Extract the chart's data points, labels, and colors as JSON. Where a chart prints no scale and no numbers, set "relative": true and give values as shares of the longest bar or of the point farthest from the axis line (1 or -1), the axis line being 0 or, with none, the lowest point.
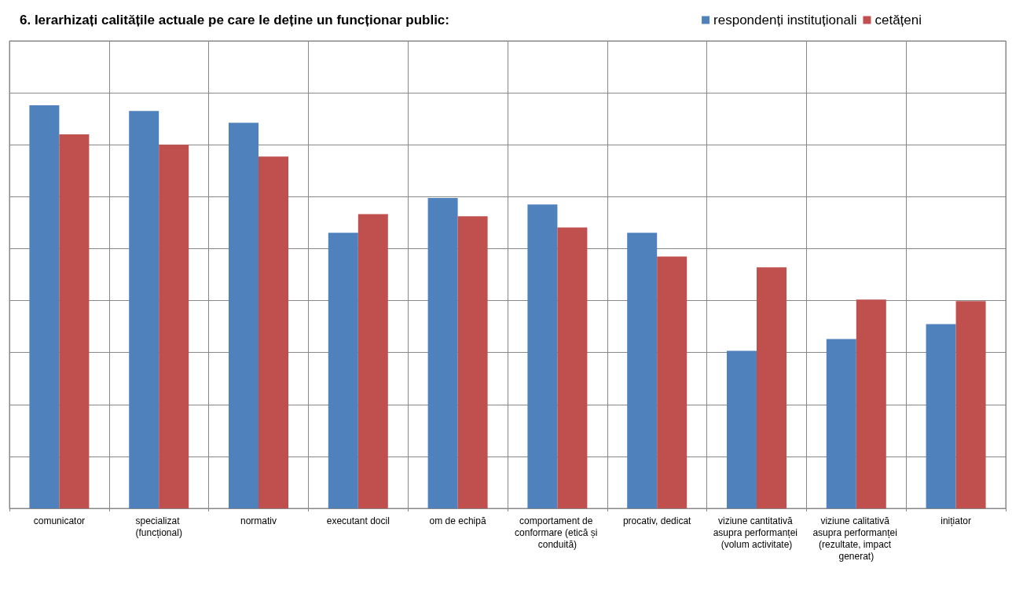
{
  "chart_data": {
    "type": "bar",
    "title": "6. Ierarhizați calitățile actuale pe care le deține un funcționar public:",
    "categories": [
      "comunicator",
      "specializat (funcțional)",
      "normativ",
      "executant docil",
      "om de echipă",
      "comportament de conformare (etică și conduită)",
      "procativ, dedicat",
      "viziune cantitativă asupra performanței (volum activitate)",
      "viziune calitativă asupra performanței (rezultate, impact generat)",
      "inițiator"
    ],
    "series": [
      {
        "name": "respondenți instituționali",
        "color": "#4f81bd",
        "values": [
          1.0,
          0.986,
          0.957,
          0.684,
          0.77,
          0.754,
          0.684,
          0.391,
          0.42,
          0.457
        ]
      },
      {
        "name": "cetățeni",
        "color": "#c0504d",
        "values": [
          0.928,
          0.902,
          0.873,
          0.73,
          0.725,
          0.697,
          0.625,
          0.598,
          0.518,
          0.514
        ]
      }
    ],
    "relative": true,
    "grid": true,
    "legend": "top right"
  }
}
